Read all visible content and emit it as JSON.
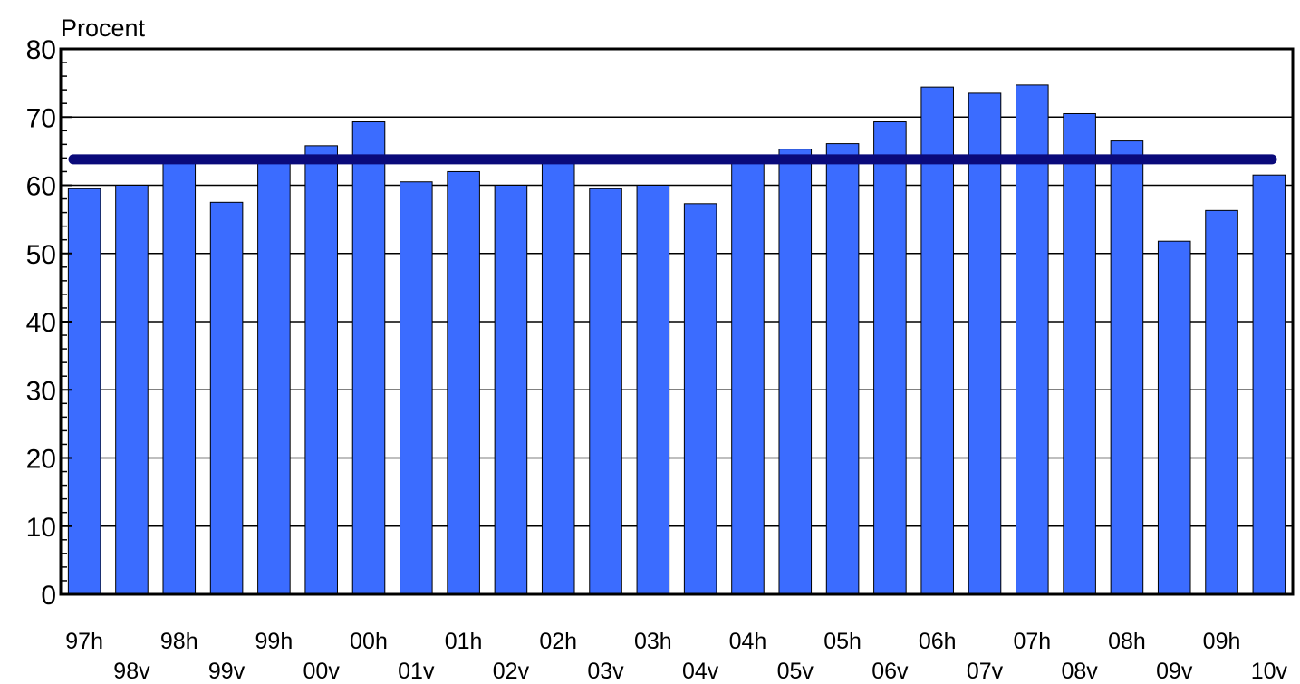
{
  "chart_data": {
    "type": "bar",
    "title": "",
    "ylabel": "Procent",
    "xlabel": "",
    "ylim": [
      0,
      80
    ],
    "yticks": [
      0,
      10,
      20,
      30,
      40,
      50,
      60,
      70,
      80
    ],
    "grid": "horizontal",
    "categories": [
      "97h",
      "98v",
      "98h",
      "99v",
      "99h",
      "00v",
      "00h",
      "01v",
      "01h",
      "02v",
      "02h",
      "03v",
      "03h",
      "04v",
      "04h",
      "05v",
      "05h",
      "06v",
      "06h",
      "07v",
      "07h",
      "08v",
      "08h",
      "09v",
      "09h",
      "10v"
    ],
    "values": [
      59.5,
      60,
      64,
      57.5,
      64,
      65.8,
      69.3,
      60.5,
      62,
      60,
      64,
      59.5,
      60,
      57.3,
      64,
      65.3,
      66.1,
      69.3,
      74.4,
      73.5,
      74.7,
      70.5,
      66.5,
      51.8,
      56.3,
      61.5
    ],
    "reference_line": {
      "value": 63.8
    },
    "colors": {
      "bar": "#3b6cff",
      "reference_line": "#0a0a7a"
    }
  }
}
